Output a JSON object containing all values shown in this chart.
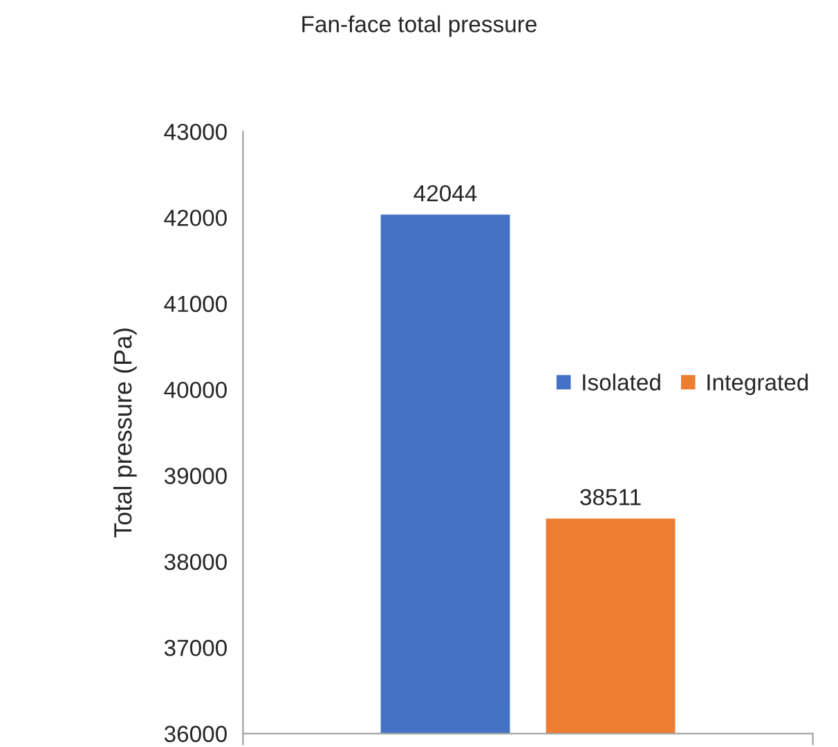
{
  "chart_data": {
    "type": "bar",
    "title": "Fan-face total pressure",
    "ylabel": "Total pressure (Pa)",
    "categories": [
      null
    ],
    "series": [
      {
        "name": "Isolated",
        "color": "#4472c4",
        "values": [
          42044
        ]
      },
      {
        "name": "Integrated",
        "color": "#ed7d31",
        "values": [
          38511
        ]
      }
    ],
    "ylim": [
      36000,
      43000
    ],
    "yticks": [
      36000,
      37000,
      38000,
      39000,
      40000,
      41000,
      42000,
      43000
    ],
    "data_labels": true,
    "grid": false,
    "legend": "right"
  }
}
